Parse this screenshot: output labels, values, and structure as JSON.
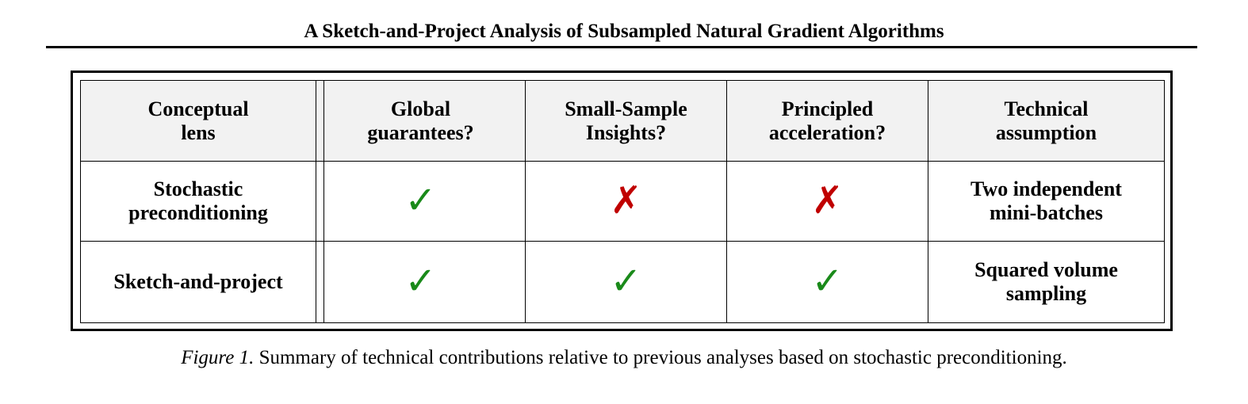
{
  "header": {
    "title": "A Sketch-and-Project Analysis of Subsampled Natural Gradient Algorithms"
  },
  "table": {
    "columns": [
      [
        "Conceptual",
        "lens"
      ],
      [
        "Global",
        "guarantees?"
      ],
      [
        "Small-Sample",
        "Insights?"
      ],
      [
        "Principled",
        "acceleration?"
      ],
      [
        "Technical",
        "assumption"
      ]
    ],
    "rows": [
      [
        [
          "Stochastic",
          "preconditioning"
        ],
        "✓",
        "✗",
        "✗",
        [
          "Two independent",
          "mini-batches"
        ]
      ],
      [
        [
          "Sketch-and-project"
        ],
        "✓",
        "✓",
        "✓",
        [
          "Squared volume",
          "sampling"
        ]
      ]
    ]
  },
  "caption": {
    "label": "Figure 1.",
    "text": "Summary of technical contributions relative to previous analyses based on stochastic preconditioning."
  }
}
